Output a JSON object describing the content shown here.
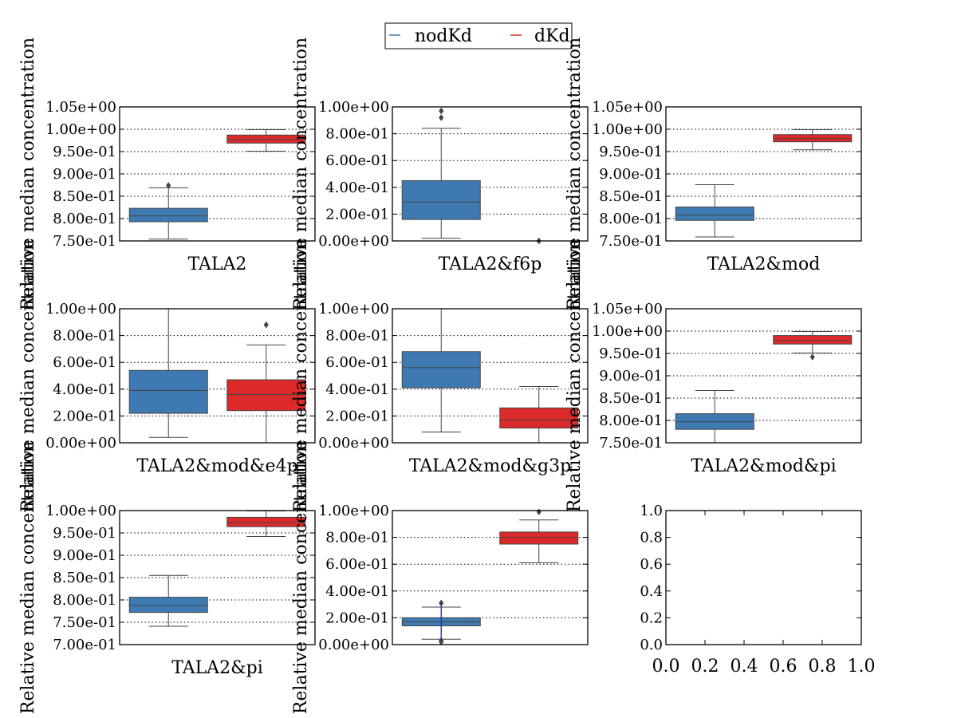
{
  "legend": {
    "placement": "top-center",
    "entries": [
      {
        "label": "nodKd",
        "color": "#3e7ab1"
      },
      {
        "label": "dKd",
        "color": "#dc2a2a"
      }
    ]
  },
  "colors": {
    "nodKd": "#3e7ab1",
    "dKd": "#dc2a2a",
    "whisker": "#444444",
    "flier": "#444444",
    "highlight": "#1a1aff"
  },
  "chart_data": [
    {
      "type": "box",
      "xlabel": "TALA2",
      "ylabel": "Relative median concentration",
      "ylim": [
        0.75,
        1.05
      ],
      "yticks": [
        0.75,
        0.8,
        0.85,
        0.9,
        0.95,
        1.0,
        1.05
      ],
      "ytick_labels": [
        "7.50e-01",
        "8.00e-01",
        "8.50e-01",
        "9.00e-01",
        "9.50e-01",
        "1.00e+00",
        "1.05e+00"
      ],
      "grid": true,
      "boxes": [
        {
          "series": "nodKd",
          "whislo": 0.754,
          "q1": 0.793,
          "med": 0.806,
          "q3": 0.823,
          "whishi": 0.869,
          "fliers": [
            0.874
          ]
        },
        {
          "series": "dKd",
          "whislo": 0.951,
          "q1": 0.969,
          "med": 0.977,
          "q3": 0.987,
          "whishi": 0.999,
          "fliers": []
        }
      ]
    },
    {
      "type": "box",
      "xlabel": "TALA2&f6p",
      "ylabel": "Relative median concentration",
      "ylim": [
        0.0,
        1.0
      ],
      "yticks": [
        0.0,
        0.2,
        0.4,
        0.6,
        0.8,
        1.0
      ],
      "ytick_labels": [
        "0.00e+00",
        "2.00e-01",
        "4.00e-01",
        "6.00e-01",
        "8.00e-01",
        "1.00e+00"
      ],
      "grid": true,
      "boxes": [
        {
          "series": "nodKd",
          "whislo": 0.02,
          "q1": 0.16,
          "med": 0.29,
          "q3": 0.45,
          "whishi": 0.84,
          "fliers": [
            0.92,
            0.97
          ]
        },
        {
          "series": "dKd",
          "whislo": 0.0,
          "q1": 0.0,
          "med": 0.0,
          "q3": 0.0,
          "whishi": 0.0,
          "fliers": [
            0.0
          ]
        }
      ]
    },
    {
      "type": "box",
      "xlabel": "TALA2&mod",
      "ylabel": "Relative median concentration",
      "ylim": [
        0.75,
        1.05
      ],
      "yticks": [
        0.75,
        0.8,
        0.85,
        0.9,
        0.95,
        1.0,
        1.05
      ],
      "ytick_labels": [
        "7.50e-01",
        "8.00e-01",
        "8.50e-01",
        "9.00e-01",
        "9.50e-01",
        "1.00e+00",
        "1.05e+00"
      ],
      "grid": true,
      "boxes": [
        {
          "series": "nodKd",
          "whislo": 0.759,
          "q1": 0.796,
          "med": 0.808,
          "q3": 0.826,
          "whishi": 0.876,
          "fliers": []
        },
        {
          "series": "dKd",
          "whislo": 0.954,
          "q1": 0.972,
          "med": 0.979,
          "q3": 0.988,
          "whishi": 0.999,
          "fliers": []
        }
      ]
    },
    {
      "type": "box",
      "xlabel": "TALA2&mod&e4p",
      "ylabel": "Relative median concentration",
      "ylim": [
        0.0,
        1.0
      ],
      "yticks": [
        0.0,
        0.2,
        0.4,
        0.6,
        0.8,
        1.0
      ],
      "ytick_labels": [
        "0.00e+00",
        "2.00e-01",
        "4.00e-01",
        "6.00e-01",
        "8.00e-01",
        "1.00e+00"
      ],
      "grid": true,
      "boxes": [
        {
          "series": "nodKd",
          "whislo": 0.04,
          "q1": 0.22,
          "med": 0.39,
          "q3": 0.54,
          "whishi": 1.0,
          "fliers": []
        },
        {
          "series": "dKd",
          "whislo": 0.0,
          "q1": 0.24,
          "med": 0.36,
          "q3": 0.47,
          "whishi": 0.73,
          "fliers": [
            0.88
          ]
        }
      ]
    },
    {
      "type": "box",
      "xlabel": "TALA2&mod&g3p",
      "ylabel": "Relative median concentration",
      "ylim": [
        0.0,
        1.0
      ],
      "yticks": [
        0.0,
        0.2,
        0.4,
        0.6,
        0.8,
        1.0
      ],
      "ytick_labels": [
        "0.00e+00",
        "2.00e-01",
        "4.00e-01",
        "6.00e-01",
        "8.00e-01",
        "1.00e+00"
      ],
      "grid": true,
      "boxes": [
        {
          "series": "nodKd",
          "whislo": 0.08,
          "q1": 0.41,
          "med": 0.56,
          "q3": 0.68,
          "whishi": 1.0,
          "fliers": []
        },
        {
          "series": "dKd",
          "whislo": 0.0,
          "q1": 0.11,
          "med": 0.17,
          "q3": 0.26,
          "whishi": 0.42,
          "fliers": []
        }
      ]
    },
    {
      "type": "box",
      "xlabel": "TALA2&mod&pi",
      "ylabel": "Relative median concentration",
      "ylim": [
        0.75,
        1.05
      ],
      "yticks": [
        0.75,
        0.8,
        0.85,
        0.9,
        0.95,
        1.0,
        1.05
      ],
      "ytick_labels": [
        "7.50e-01",
        "8.00e-01",
        "8.50e-01",
        "9.00e-01",
        "9.50e-01",
        "1.00e+00",
        "1.05e+00"
      ],
      "grid": true,
      "boxes": [
        {
          "series": "nodKd",
          "whislo": 0.75,
          "q1": 0.78,
          "med": 0.797,
          "q3": 0.815,
          "whishi": 0.867,
          "fliers": []
        },
        {
          "series": "dKd",
          "whislo": 0.951,
          "q1": 0.971,
          "med": 0.979,
          "q3": 0.99,
          "whishi": 0.999,
          "fliers": [
            0.942
          ]
        }
      ]
    },
    {
      "type": "box",
      "xlabel": "TALA2&pi",
      "ylabel": "Relative median concentration",
      "ylim": [
        0.7,
        1.0
      ],
      "yticks": [
        0.7,
        0.75,
        0.8,
        0.85,
        0.9,
        0.95,
        1.0
      ],
      "ytick_labels": [
        "7.00e-01",
        "7.50e-01",
        "8.00e-01",
        "8.50e-01",
        "9.00e-01",
        "9.50e-01",
        "1.00e+00"
      ],
      "grid": true,
      "boxes": [
        {
          "series": "nodKd",
          "whislo": 0.741,
          "q1": 0.772,
          "med": 0.788,
          "q3": 0.806,
          "whishi": 0.855,
          "fliers": []
        },
        {
          "series": "dKd",
          "whislo": 0.942,
          "q1": 0.964,
          "med": 0.973,
          "q3": 0.985,
          "whishi": 0.999,
          "fliers": []
        }
      ]
    },
    {
      "type": "box",
      "xlabel": "",
      "ylabel": "Relative median concentration",
      "ylim": [
        0.0,
        1.0
      ],
      "yticks": [
        0.0,
        0.2,
        0.4,
        0.6,
        0.8,
        1.0
      ],
      "ytick_labels": [
        "0.00e+00",
        "2.00e-01",
        "4.00e-01",
        "6.00e-01",
        "8.00e-01",
        "1.00e+00"
      ],
      "grid": true,
      "boxes": [
        {
          "series": "nodKd",
          "whislo": 0.04,
          "q1": 0.14,
          "med": 0.17,
          "q3": 0.2,
          "whishi": 0.28,
          "fliers": [
            0.31,
            0.02,
            0.03
          ]
        },
        {
          "series": "dKd",
          "whislo": 0.61,
          "q1": 0.75,
          "med": 0.8,
          "q3": 0.84,
          "whishi": 0.93,
          "fliers": [
            0.99
          ]
        }
      ],
      "segment": {
        "x": 0,
        "from": 0.03,
        "to": 0.31
      }
    },
    {
      "type": "empty",
      "xlabel": "",
      "ylabel": "",
      "xlim": [
        0.0,
        1.0
      ],
      "ylim": [
        0.0,
        1.0
      ],
      "xticks": [
        0.0,
        0.2,
        0.4,
        0.6,
        0.8,
        1.0
      ],
      "xtick_labels": [
        "0.0",
        "0.2",
        "0.4",
        "0.6",
        "0.8",
        "1.0"
      ],
      "yticks": [
        0.0,
        0.2,
        0.4,
        0.6,
        0.8,
        1.0
      ],
      "ytick_labels": [
        "0.0",
        "0.2",
        "0.4",
        "0.6",
        "0.8",
        "1.0"
      ],
      "grid": false,
      "boxes": []
    }
  ]
}
